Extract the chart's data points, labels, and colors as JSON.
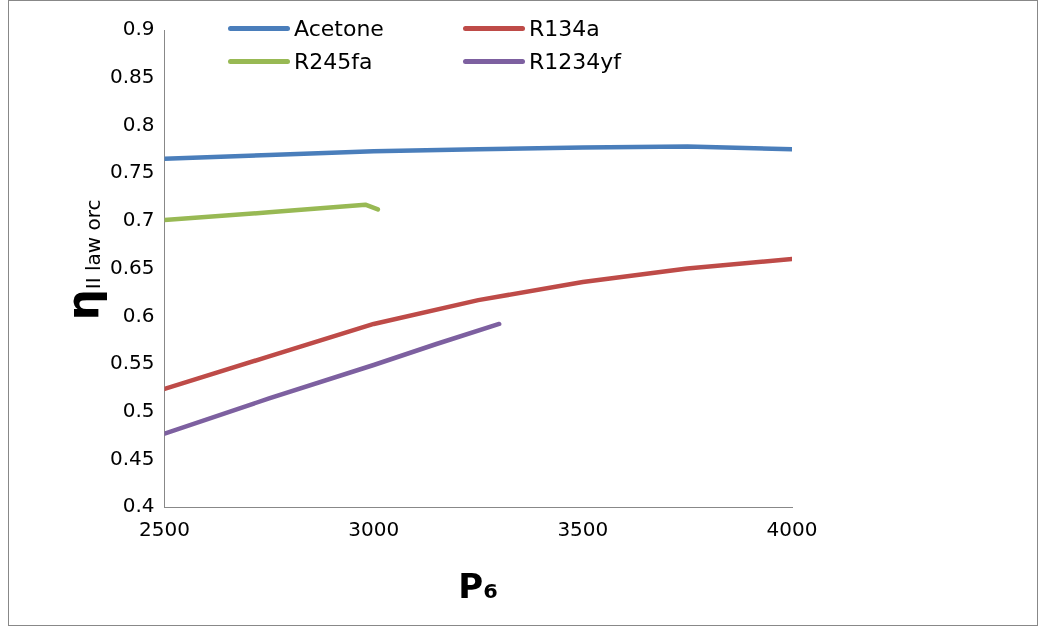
{
  "chart_data": {
    "type": "line",
    "xlabel": "P₆",
    "ylabel": "η$_{II law orc}$",
    "xlim": [
      2500,
      4000
    ],
    "xticks": [
      2500,
      3000,
      3500,
      4000
    ],
    "ylim": [
      0.4,
      0.9
    ],
    "yticks": [
      0.4,
      0.45,
      0.5,
      0.55,
      0.6,
      0.65,
      0.7,
      0.75,
      0.8,
      0.85,
      0.9
    ],
    "grid": false,
    "legend": "top",
    "marker": "none",
    "line_style": "solid",
    "series": [
      {
        "name": "Acetone",
        "color": "#4a7ebb",
        "x": [
          2500,
          2750,
          3000,
          3250,
          3500,
          3750,
          4000
        ],
        "values": [
          0.765,
          0.769,
          0.773,
          0.775,
          0.777,
          0.778,
          0.775
        ]
      },
      {
        "name": "R134a",
        "color": "#be4b48",
        "x": [
          2500,
          2750,
          3000,
          3250,
          3500,
          3750,
          4000
        ],
        "values": [
          0.524,
          0.558,
          0.592,
          0.617,
          0.636,
          0.65,
          0.66
        ]
      },
      {
        "name": "R245fa",
        "color": "#98b954",
        "x": [
          2500,
          2750,
          2980,
          3010
        ],
        "values": [
          0.701,
          0.709,
          0.717,
          0.712
        ]
      },
      {
        "name": "R1234yf",
        "color": "#7d60a0",
        "x": [
          2500,
          2750,
          3000,
          3150,
          3300
        ],
        "values": [
          0.477,
          0.514,
          0.549,
          0.571,
          0.592
        ]
      }
    ]
  }
}
